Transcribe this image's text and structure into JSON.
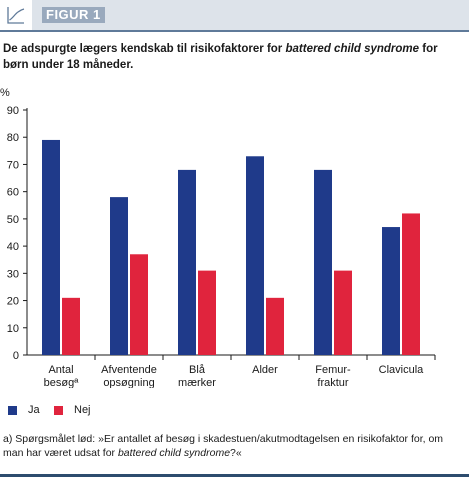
{
  "header": {
    "title": "FIGUR 1",
    "icon": "line-chart-icon"
  },
  "subtitle": {
    "part1": "De adspurgte lægers kendskab til risikofaktorer for ",
    "italic": "battered child syndrome",
    "part2": " for børn under 18 måneder."
  },
  "chart_data": {
    "type": "bar",
    "unit_label": "%",
    "ylim": [
      0,
      90
    ],
    "yticks": [
      0,
      10,
      20,
      30,
      40,
      50,
      60,
      70,
      80,
      90
    ],
    "categories": [
      [
        "Antal",
        "besøgª"
      ],
      [
        "Afventende",
        "opsøgning"
      ],
      [
        "Blå",
        "mærker"
      ],
      [
        "Alder"
      ],
      [
        "Femur-",
        "fraktur"
      ],
      [
        "Clavicula"
      ]
    ],
    "series": [
      {
        "name": "Ja",
        "color": "#1f3a8a",
        "values": [
          79,
          58,
          68,
          73,
          68,
          47
        ]
      },
      {
        "name": "Nej",
        "color": "#e0243d",
        "values": [
          21,
          37,
          31,
          21,
          31,
          52
        ]
      }
    ],
    "grid": false,
    "legend": "bottom-left"
  },
  "footnote": {
    "part1": "a) Spørgsmålet lød: »Er antallet af besøg i skadestuen/akutmodtagelsen en risikofaktor for, om man har været udsat for ",
    "italic": "battered child syndrome",
    "part2": "?«"
  }
}
